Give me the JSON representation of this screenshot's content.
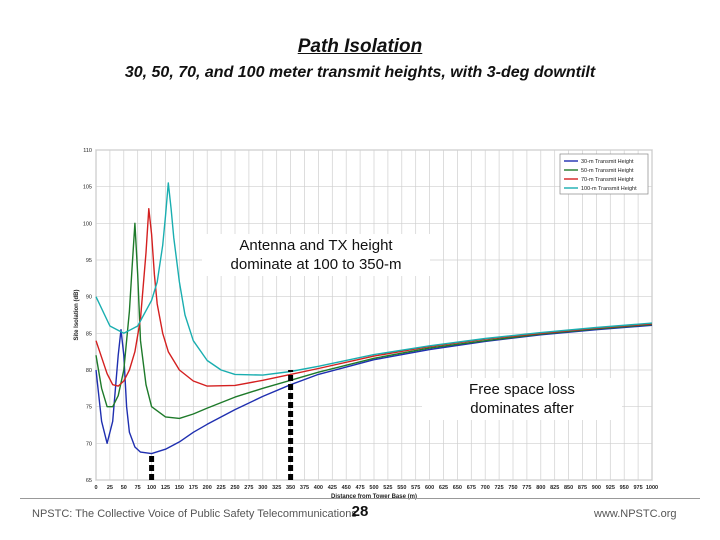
{
  "slide": {
    "title": "Path Isolation",
    "subtitle": "30, 50, 70, and 100 meter transmit heights, with 3-deg downtilt"
  },
  "callouts": {
    "antenna": [
      "Antenna and TX height",
      "dominate at 100 to 350-m"
    ],
    "freespace": [
      "Free space loss",
      "dominates after"
    ]
  },
  "footer": {
    "left": "NPSTC:  The Collective Voice of Public Safety Telecommunications",
    "page": "28",
    "right": "www.NPSTC.org"
  },
  "chart_data": {
    "type": "line",
    "xlabel": "Distance from Tower Base (m)",
    "ylabel": "Site Isolation (dB)",
    "xlim": [
      0,
      1000
    ],
    "ylim": [
      65,
      110
    ],
    "grid": true,
    "legend_position": "top-right",
    "xticks": [
      0,
      25,
      50,
      75,
      100,
      125,
      150,
      175,
      200,
      225,
      250,
      275,
      300,
      325,
      350,
      375,
      400,
      425,
      450,
      475,
      500,
      525,
      550,
      575,
      600,
      625,
      650,
      675,
      700,
      725,
      750,
      775,
      800,
      825,
      850,
      875,
      900,
      925,
      950,
      975,
      1000
    ],
    "yticks": [
      65,
      70,
      75,
      80,
      85,
      90,
      95,
      100,
      105,
      110
    ],
    "markers": [
      {
        "x": 100,
        "from_y": 65,
        "to_y": 68.5
      },
      {
        "x": 350,
        "from_y": 65,
        "to_y": 80
      }
    ],
    "series": [
      {
        "name": "30-m Transmit Height",
        "color": "#1f2fb0",
        "x": [
          0,
          10,
          20,
          30,
          40,
          45,
          50,
          55,
          60,
          70,
          80,
          100,
          125,
          150,
          175,
          200,
          250,
          300,
          350,
          400,
          500,
          600,
          700,
          800,
          900,
          1000
        ],
        "y": [
          80,
          73,
          70,
          73,
          82,
          85.5,
          82,
          75,
          71.5,
          69.5,
          68.8,
          68.6,
          69.2,
          70.2,
          71.5,
          72.6,
          74.6,
          76.4,
          78,
          79.4,
          81.4,
          82.8,
          83.9,
          84.8,
          85.5,
          86.1
        ]
      },
      {
        "name": "50-m Transmit Height",
        "color": "#1e7a2a",
        "x": [
          0,
          10,
          20,
          30,
          40,
          50,
          60,
          65,
          70,
          75,
          80,
          90,
          100,
          125,
          150,
          175,
          200,
          250,
          300,
          350,
          400,
          500,
          600,
          700,
          800,
          900,
          1000
        ],
        "y": [
          82,
          77.5,
          75,
          75,
          76.5,
          80,
          88,
          94,
          100,
          93,
          84,
          78,
          75,
          73.6,
          73.4,
          74,
          74.8,
          76.3,
          77.5,
          78.6,
          79.7,
          81.6,
          83,
          84,
          84.9,
          85.6,
          86.2
        ]
      },
      {
        "name": "70-m Transmit Height",
        "color": "#d42020",
        "x": [
          0,
          20,
          30,
          40,
          50,
          60,
          70,
          80,
          90,
          95,
          100,
          105,
          110,
          120,
          130,
          150,
          175,
          200,
          250,
          300,
          350,
          400,
          500,
          600,
          700,
          800,
          900,
          1000
        ],
        "y": [
          84,
          79.5,
          78,
          77.8,
          78.5,
          80,
          82.5,
          87,
          96,
          102,
          98.5,
          93,
          89,
          85,
          82.5,
          80,
          78.5,
          77.8,
          77.9,
          78.6,
          79.4,
          80.2,
          81.9,
          83.2,
          84.2,
          85,
          85.7,
          86.3
        ]
      },
      {
        "name": "100-m Transmit Height",
        "color": "#1aaeb0",
        "x": [
          0,
          25,
          50,
          75,
          100,
          110,
          120,
          125,
          130,
          135,
          140,
          150,
          160,
          175,
          200,
          225,
          250,
          300,
          350,
          400,
          500,
          600,
          700,
          800,
          900,
          1000
        ],
        "y": [
          90,
          86,
          85,
          86,
          89.5,
          92,
          97,
          101,
          105.5,
          102,
          98,
          92,
          87.5,
          84,
          81.3,
          80,
          79.4,
          79.3,
          79.8,
          80.5,
          82.1,
          83.3,
          84.3,
          85.1,
          85.8,
          86.4
        ]
      }
    ]
  }
}
